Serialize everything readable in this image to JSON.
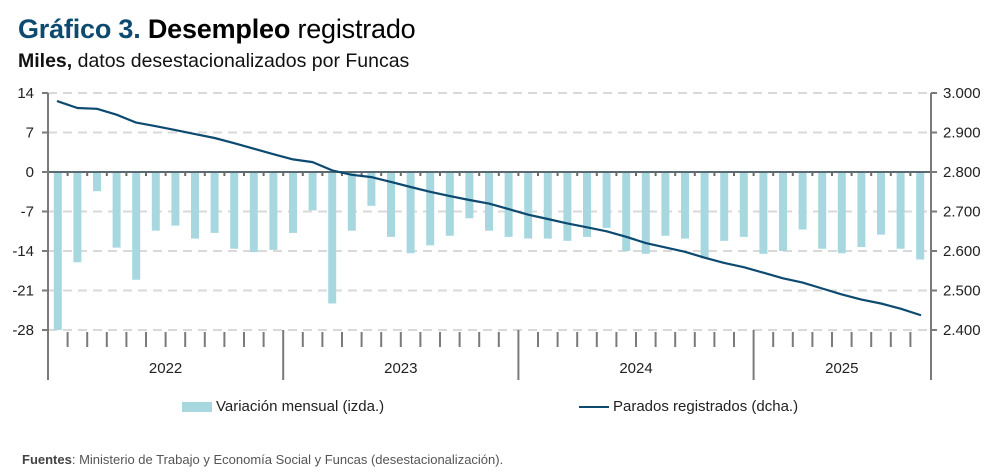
{
  "header": {
    "title_num": "Gráfico 3.",
    "title_strong": "Desempleo",
    "title_rest": "registrado",
    "subtitle_strong": "Miles,",
    "subtitle_rest": "datos desestacionalizados por Funcas"
  },
  "colors": {
    "bars": "#a8d8df",
    "line": "#0d4a70",
    "title_accent": "#0d4a70",
    "grid": "#d9d9d9",
    "axis": "#7a7a7a"
  },
  "chart_data": {
    "type": "bar+line",
    "title": "Gráfico 3. Desempleo registrado",
    "subtitle": "Miles, datos desestacionalizados por Funcas",
    "xlabel": "",
    "years": [
      "2022",
      "2023",
      "2024",
      "2025"
    ],
    "months_per_year": [
      12,
      12,
      12,
      9
    ],
    "left_axis": {
      "label": "Variación mensual (izda.)",
      "ylim": [
        -28,
        14
      ],
      "ticks": [
        14,
        7,
        0,
        -7,
        -14,
        -21,
        -28
      ],
      "tick_labels": [
        "14",
        "7",
        "0",
        "-7",
        "-14",
        "-21",
        "-28"
      ]
    },
    "right_axis": {
      "label": "Parados registrados (dcha.)",
      "ylim": [
        2400,
        3000
      ],
      "ticks": [
        3000,
        2900,
        2800,
        2700,
        2600,
        2500,
        2400
      ],
      "tick_labels": [
        "3.000",
        "2.900",
        "2.800",
        "2.700",
        "2.600",
        "2.500",
        "2.400"
      ]
    },
    "grid": true,
    "legend_position": "bottom",
    "series": [
      {
        "name": "Variación mensual (izda.)",
        "type": "bar",
        "axis": "left",
        "values": [
          -28.0,
          -16.0,
          -3.4,
          -13.4,
          -19.1,
          -10.4,
          -9.5,
          -11.8,
          -10.8,
          -13.6,
          -14.2,
          -13.8,
          -10.8,
          -6.8,
          -23.3,
          -10.4,
          -6.0,
          -11.5,
          -14.4,
          -13.0,
          -11.3,
          -8.2,
          -10.4,
          -11.5,
          -11.8,
          -11.8,
          -12.2,
          -11.5,
          -9.9,
          -14.0,
          -14.5,
          -11.3,
          -11.8,
          -15.3,
          -12.2,
          -11.5,
          -14.5,
          -14.0,
          -10.2,
          -13.6,
          -14.4,
          -13.3,
          -11.1,
          -13.6,
          -15.5
        ]
      },
      {
        "name": "Parados registrados (dcha.)",
        "type": "line",
        "axis": "right",
        "values": [
          2979,
          2962,
          2960,
          2945,
          2925,
          2916,
          2906,
          2896,
          2886,
          2873,
          2859,
          2845,
          2832,
          2825,
          2804,
          2793,
          2787,
          2775,
          2762,
          2750,
          2739,
          2729,
          2720,
          2706,
          2692,
          2681,
          2670,
          2660,
          2650,
          2636,
          2620,
          2609,
          2598,
          2583,
          2570,
          2559,
          2545,
          2531,
          2520,
          2505,
          2490,
          2477,
          2467,
          2454,
          2438
        ]
      }
    ]
  },
  "legend": {
    "bars_label": "Variación mensual (izda.)",
    "line_label": "Parados registrados (dcha.)"
  },
  "footer": {
    "label": "Fuentes",
    "text": ": Ministerio de Trabajo y Economía Social y Funcas (desestacionalización)."
  }
}
